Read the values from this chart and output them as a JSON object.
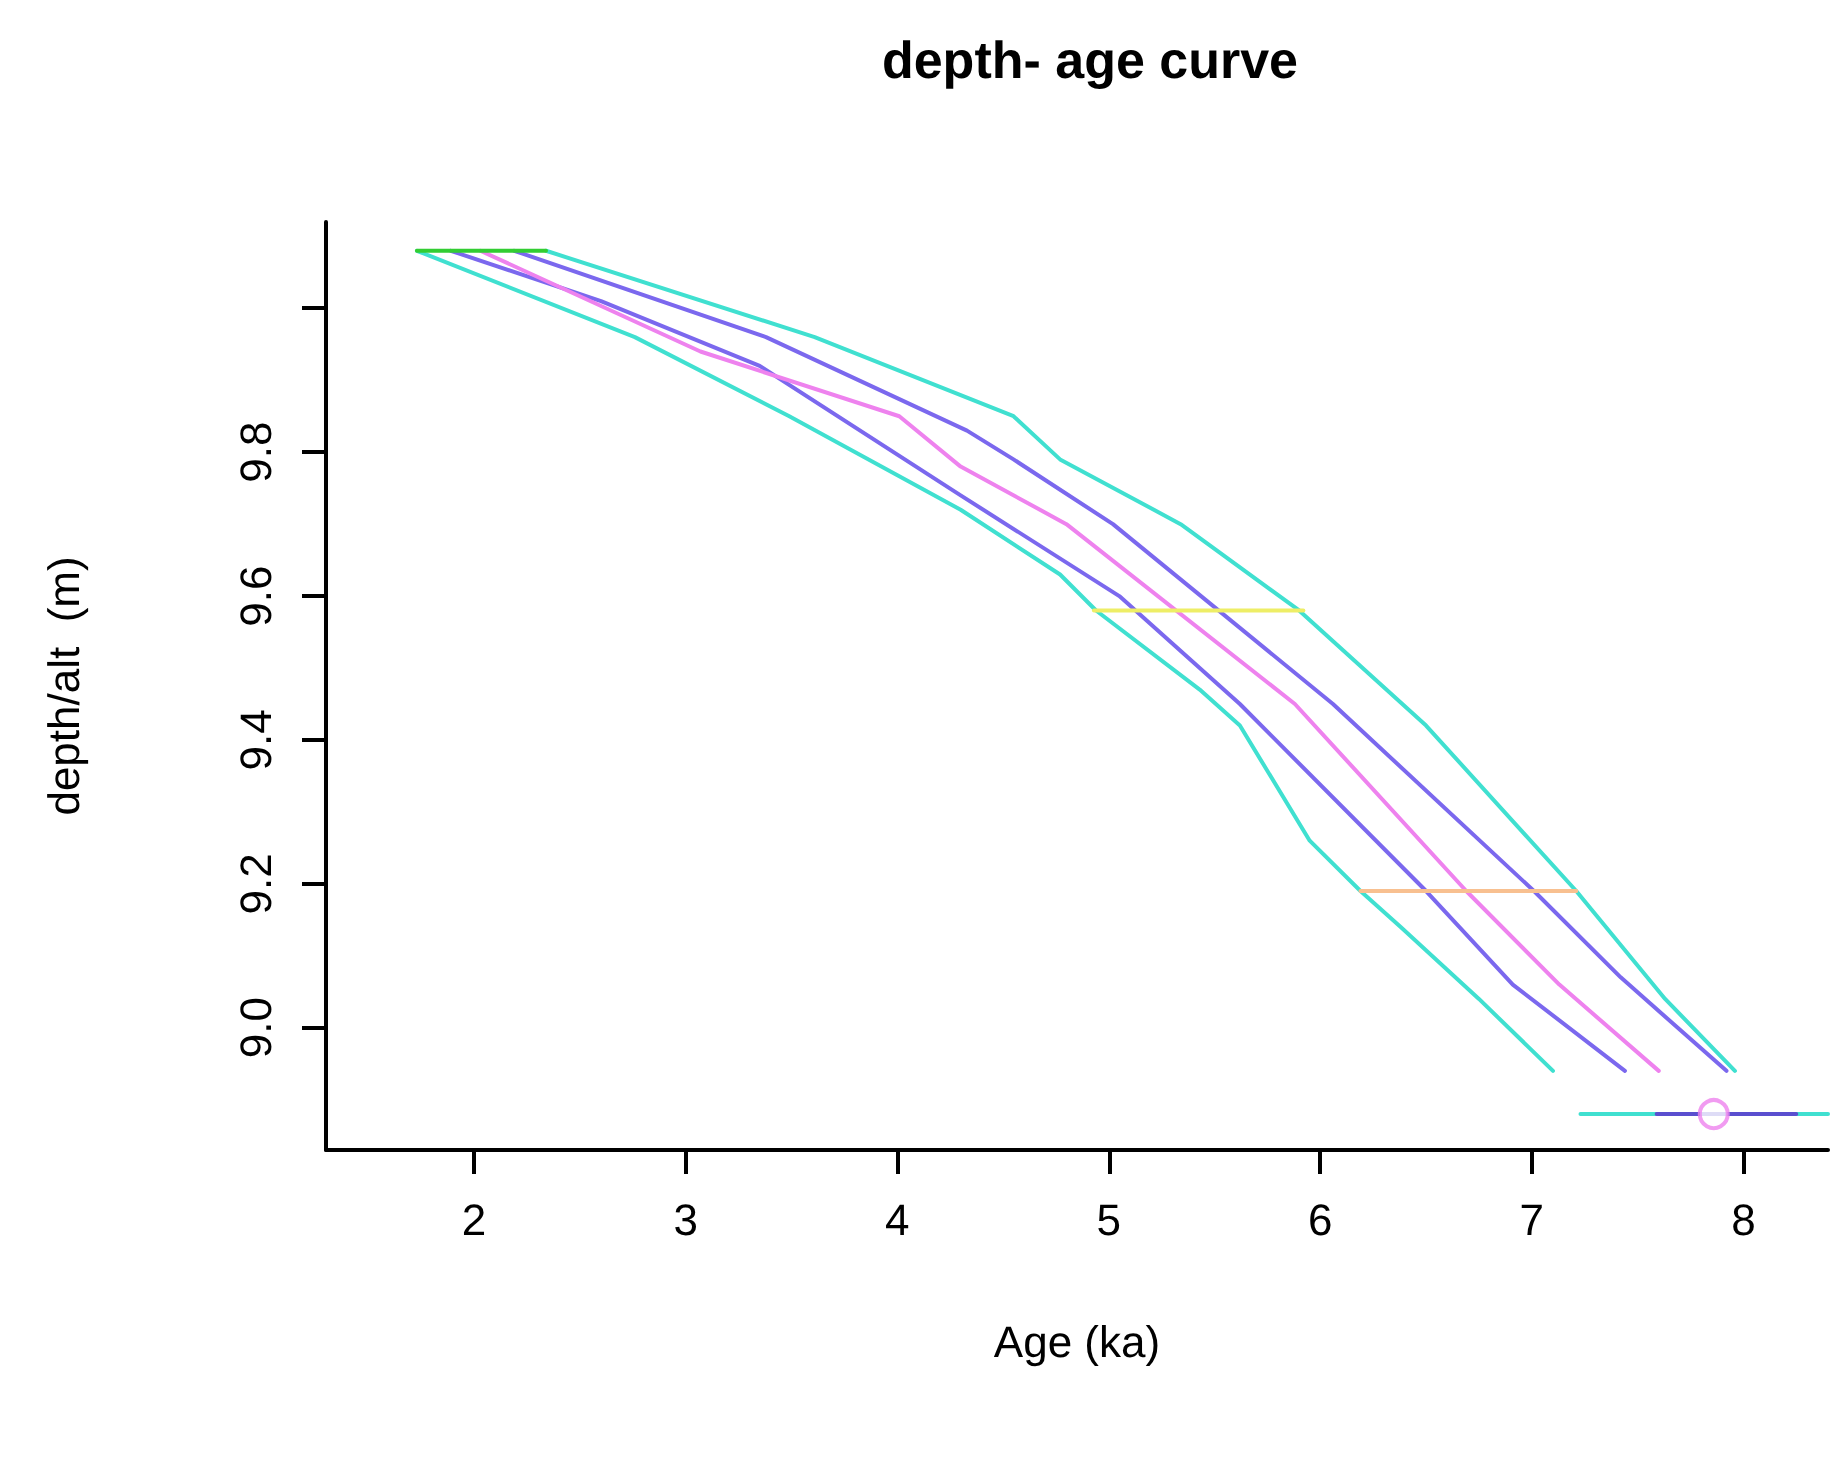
{
  "chart_data": {
    "type": "line",
    "title": "depth- age curve",
    "xlabel": "Age (ka)",
    "ylabel": "depth/alt  (m)",
    "xlim": [
      1.3,
      8.4
    ],
    "xticks": [
      2,
      3,
      4,
      5,
      6,
      7,
      8
    ],
    "ylim": [
      8.83,
      10.12
    ],
    "yticks": [
      {
        "value": 9.0,
        "label": "9.0"
      },
      {
        "value": 9.2,
        "label": "9.2"
      },
      {
        "value": 9.4,
        "label": "9.4"
      },
      {
        "value": 9.6,
        "label": "9.6"
      },
      {
        "value": 9.8,
        "label": "9.8"
      },
      {
        "value": 10.0,
        "label": null
      }
    ],
    "grid": false,
    "marker": "none",
    "line_style": "solid",
    "series": [
      {
        "color": "#40e0d0",
        "x": [
          1.73,
          2.76,
          3.49,
          4.3,
          4.77,
          4.94,
          5.43,
          5.62,
          5.95,
          6.19,
          6.38,
          6.75,
          7.1
        ],
        "values": [
          10.08,
          9.96,
          9.85,
          9.72,
          9.63,
          9.58,
          9.47,
          9.42,
          9.26,
          9.19,
          9.14,
          9.04,
          8.94
        ]
      },
      {
        "color": "#7b68ee",
        "x": [
          1.89,
          2.6,
          3.35,
          4.3,
          5.05,
          5.62,
          6.5,
          6.91,
          7.44
        ],
        "values": [
          10.08,
          10.01,
          9.92,
          9.74,
          9.6,
          9.45,
          9.19,
          9.06,
          8.94
        ]
      },
      {
        "color": "#ee82ee",
        "x": [
          2.03,
          3.07,
          4.01,
          4.3,
          4.8,
          5.88,
          6.69,
          7.13,
          7.6
        ],
        "values": [
          10.08,
          9.94,
          9.85,
          9.78,
          9.7,
          9.45,
          9.19,
          9.06,
          8.94
        ]
      },
      {
        "color": "#7b68ee",
        "x": [
          2.19,
          3.38,
          4.33,
          4.55,
          5.02,
          6.06,
          7.01,
          7.42,
          7.92
        ],
        "values": [
          10.08,
          9.96,
          9.83,
          9.79,
          9.7,
          9.45,
          9.19,
          9.07,
          8.94
        ]
      },
      {
        "color": "#40e0d0",
        "x": [
          2.34,
          3.61,
          4.55,
          4.77,
          5.34,
          5.9,
          6.5,
          7.21,
          7.63,
          7.96
        ],
        "values": [
          10.08,
          9.96,
          9.85,
          9.79,
          9.7,
          9.58,
          9.42,
          9.19,
          9.04,
          8.94
        ]
      },
      {
        "color": "#32cd32",
        "x": [
          1.73,
          2.34
        ],
        "values": [
          10.08,
          10.08
        ]
      },
      {
        "color": "#eeee66",
        "x": [
          4.93,
          5.92
        ],
        "values": [
          9.58,
          9.58
        ]
      },
      {
        "color": "#f8c090",
        "x": [
          6.19,
          7.21
        ],
        "values": [
          9.19,
          9.19
        ]
      },
      {
        "color": "#40e0d0",
        "x": [
          7.23,
          8.4
        ],
        "values": [
          8.88,
          8.88
        ]
      },
      {
        "color": "#5a4fcf",
        "x": [
          7.59,
          8.25
        ],
        "values": [
          8.88,
          8.88
        ]
      },
      {
        "type": "scatter",
        "marker": "circle",
        "color": "#ee82ee",
        "x": [
          7.86
        ],
        "values": [
          8.88
        ]
      }
    ]
  }
}
